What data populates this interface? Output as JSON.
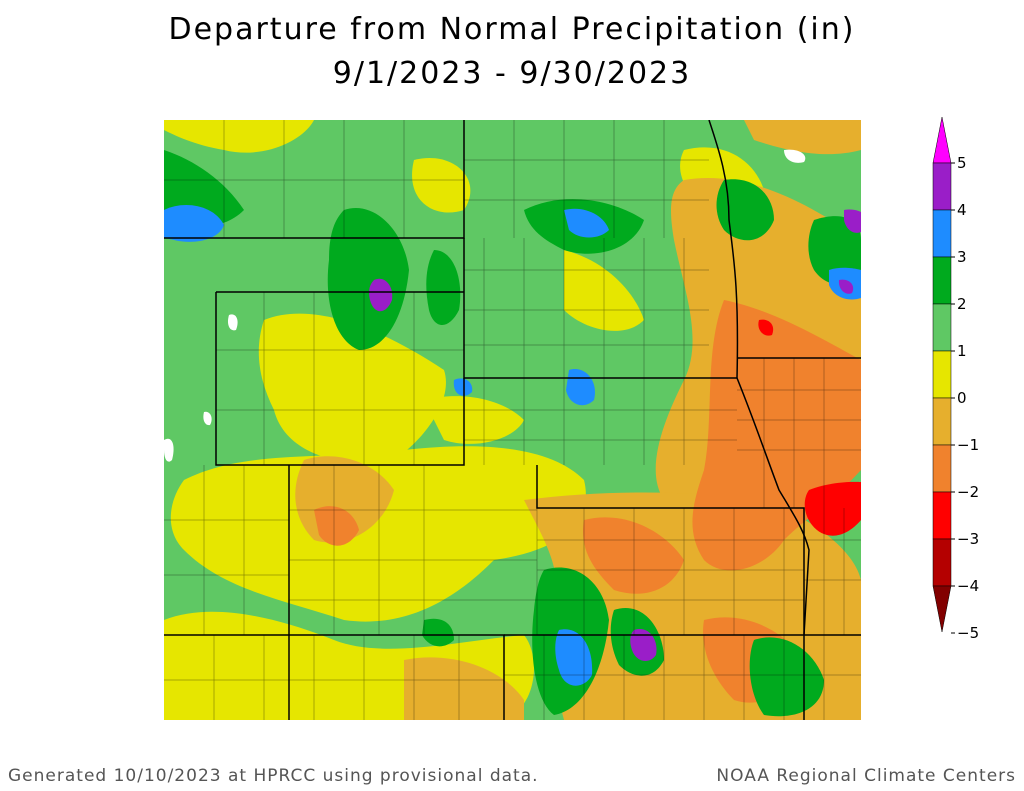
{
  "title": {
    "line1": "Departure from Normal Precipitation (in)",
    "line2": "9/1/2023 - 9/30/2023"
  },
  "legend": {
    "ticks": [
      "5",
      "4",
      "3",
      "2",
      "1",
      "0",
      "−1",
      "−2",
      "−3",
      "−4",
      "−5"
    ],
    "bins": [
      {
        "range": "4 to 5",
        "color": "#ff00ff"
      },
      {
        "range": "3 to 4",
        "color": "#9a1ec8"
      },
      {
        "range": "2 to 3",
        "color": "#1e8cff"
      },
      {
        "range": "1 to 2",
        "color": "#00aa1e"
      },
      {
        "range": "0 to 1",
        "color": "#5fc864"
      },
      {
        "range": "-1 to 0",
        "color": "#e6e600"
      },
      {
        "range": "-2 to -1",
        "color": "#e6af2d"
      },
      {
        "range": "-3 to -2",
        "color": "#f0822d"
      },
      {
        "range": "-4 to -3",
        "color": "#ff0000"
      },
      {
        "range": "-5 to -4",
        "color": "#b40000"
      },
      {
        "range": "below -5",
        "color": "#820000"
      }
    ]
  },
  "footer": {
    "left": "Generated 10/10/2023 at HPRCC using provisional data.",
    "right": "NOAA Regional Climate Centers"
  }
}
